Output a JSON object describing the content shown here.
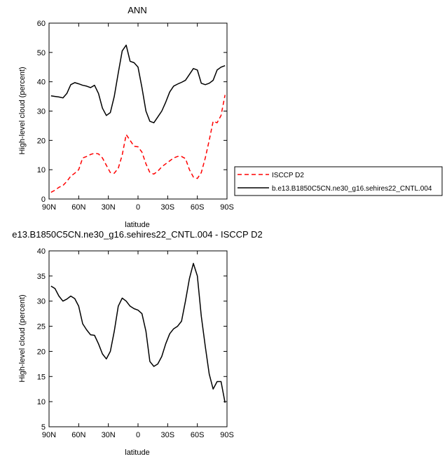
{
  "chart_data": [
    {
      "type": "line",
      "title": "ANN",
      "xlabel": "latitude",
      "ylabel": "High-level cloud (percent)",
      "xlim": [
        90,
        -90
      ],
      "ylim": [
        0,
        60
      ],
      "x_tick_values": [
        90,
        60,
        30,
        0,
        -30,
        -60,
        -90
      ],
      "x_tick_labels": [
        "90N",
        "60N",
        "30N",
        "0",
        "30S",
        "60S",
        "90S"
      ],
      "y_tick_values": [
        0,
        10,
        20,
        30,
        40,
        50,
        60
      ],
      "y_tick_labels": [
        "0",
        "10",
        "20",
        "30",
        "40",
        "50",
        "60"
      ],
      "legend_position": "right",
      "series": [
        {
          "name": "ISCCP D2",
          "color": "#ff0000",
          "dash": "dashed",
          "x": [
            88,
            84,
            80,
            76,
            72,
            68,
            64,
            60,
            56,
            52,
            48,
            44,
            40,
            36,
            32,
            28,
            24,
            20,
            16,
            12,
            8,
            4,
            0,
            -4,
            -8,
            -12,
            -16,
            -20,
            -24,
            -28,
            -32,
            -36,
            -40,
            -44,
            -48,
            -52,
            -56,
            -60,
            -64,
            -68,
            -72,
            -76,
            -80,
            -84,
            -88
          ],
          "values": [
            2.3,
            3.0,
            4.0,
            4.6,
            6.0,
            7.8,
            8.8,
            10.0,
            14.0,
            14.5,
            15.2,
            15.6,
            15.4,
            14.0,
            11.5,
            9.0,
            8.8,
            10.5,
            15.0,
            22.0,
            20.0,
            18.0,
            17.8,
            16.0,
            12.0,
            9.0,
            8.5,
            9.5,
            11.0,
            12.0,
            13.0,
            14.0,
            14.5,
            14.5,
            13.8,
            10.0,
            7.5,
            7.0,
            9.0,
            14.0,
            20.0,
            26.5,
            26.0,
            28.5,
            35.5
          ]
        },
        {
          "name": "b.e13.B1850C5CN.ne30_g16.sehires22_CNTL.004",
          "color": "#000000",
          "dash": "solid",
          "x": [
            88,
            84,
            80,
            76,
            72,
            68,
            64,
            60,
            56,
            52,
            48,
            44,
            40,
            36,
            32,
            28,
            24,
            20,
            16,
            12,
            8,
            4,
            0,
            -4,
            -8,
            -12,
            -16,
            -20,
            -24,
            -28,
            -32,
            -36,
            -40,
            -44,
            -48,
            -52,
            -56,
            -60,
            -64,
            -68,
            -72,
            -76,
            -80,
            -84,
            -88
          ],
          "values": [
            35.2,
            35.0,
            34.8,
            34.5,
            36.0,
            39.0,
            39.7,
            39.3,
            38.8,
            38.5,
            38.0,
            38.8,
            36.0,
            31.0,
            28.5,
            29.5,
            35.0,
            43.0,
            50.5,
            52.5,
            47.0,
            46.5,
            45.0,
            38.0,
            30.0,
            26.5,
            26.0,
            28.0,
            30.0,
            33.0,
            36.5,
            38.5,
            39.2,
            39.8,
            40.5,
            42.5,
            44.5,
            44.0,
            39.5,
            39.0,
            39.5,
            40.5,
            44.0,
            45.0,
            45.5
          ]
        }
      ]
    },
    {
      "type": "line",
      "title": "e13.B1850C5CN.ne30_g16.sehires22_CNTL.004 - ISCCP D2",
      "xlabel": "latitude",
      "ylabel": "High-level cloud (percent)",
      "xlim": [
        90,
        -90
      ],
      "ylim": [
        5,
        40
      ],
      "x_tick_values": [
        90,
        60,
        30,
        0,
        -30,
        -60,
        -90
      ],
      "x_tick_labels": [
        "90N",
        "60N",
        "30N",
        "0",
        "30S",
        "60S",
        "90S"
      ],
      "y_tick_values": [
        5,
        10,
        15,
        20,
        25,
        30,
        35,
        40
      ],
      "y_tick_labels": [
        "5",
        "10",
        "15",
        "20",
        "25",
        "30",
        "35",
        "40"
      ],
      "series": [
        {
          "color": "#000000",
          "dash": "solid",
          "x": [
            88,
            84,
            80,
            76,
            72,
            68,
            64,
            60,
            56,
            52,
            48,
            44,
            40,
            36,
            32,
            28,
            24,
            20,
            16,
            12,
            8,
            4,
            0,
            -4,
            -8,
            -12,
            -16,
            -20,
            -24,
            -28,
            -32,
            -36,
            -40,
            -44,
            -48,
            -52,
            -56,
            -60,
            -64,
            -68,
            -72,
            -76,
            -80,
            -84,
            -88
          ],
          "values": [
            33.0,
            32.5,
            31.0,
            30.0,
            30.4,
            31.0,
            30.5,
            29.0,
            25.5,
            24.3,
            23.3,
            23.2,
            21.5,
            19.5,
            18.5,
            20.0,
            24.0,
            29.0,
            30.6,
            30.0,
            29.0,
            28.5,
            28.2,
            27.5,
            24.0,
            18.0,
            17.0,
            17.5,
            19.0,
            21.5,
            23.5,
            24.5,
            25.0,
            26.0,
            30.0,
            34.5,
            37.5,
            35.0,
            27.0,
            21.0,
            15.5,
            12.5,
            14.0,
            14.0,
            9.8
          ]
        }
      ]
    }
  ]
}
